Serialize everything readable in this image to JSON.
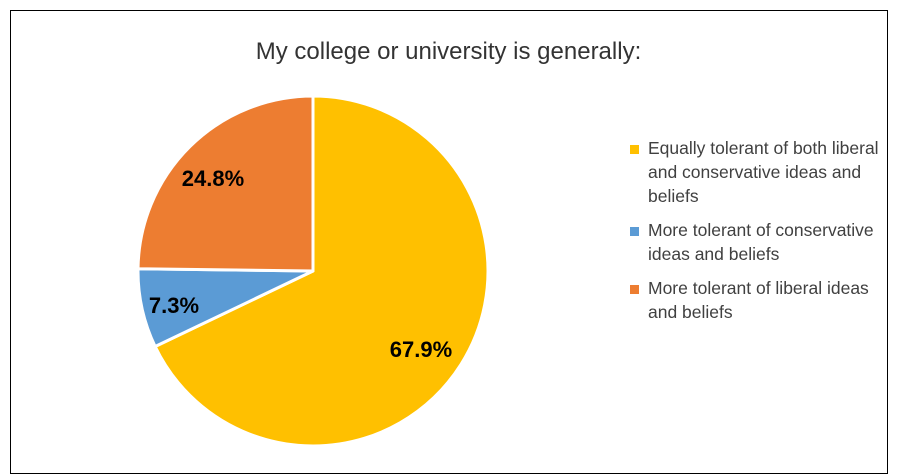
{
  "chart_data": {
    "type": "pie",
    "title": "My college or university is generally:",
    "series": [
      {
        "name": "Equally tolerant of both liberal and conservative ideas and beliefs",
        "value": 67.9,
        "label": "67.9%",
        "color": "#FFC000"
      },
      {
        "name": "More tolerant of conservative ideas and beliefs",
        "value": 7.3,
        "label": "7.3%",
        "color": "#5B9BD5"
      },
      {
        "name": "More tolerant of liberal ideas and beliefs",
        "value": 24.8,
        "label": "24.8%",
        "color": "#ED7D31"
      }
    ],
    "legend_position": "right"
  }
}
